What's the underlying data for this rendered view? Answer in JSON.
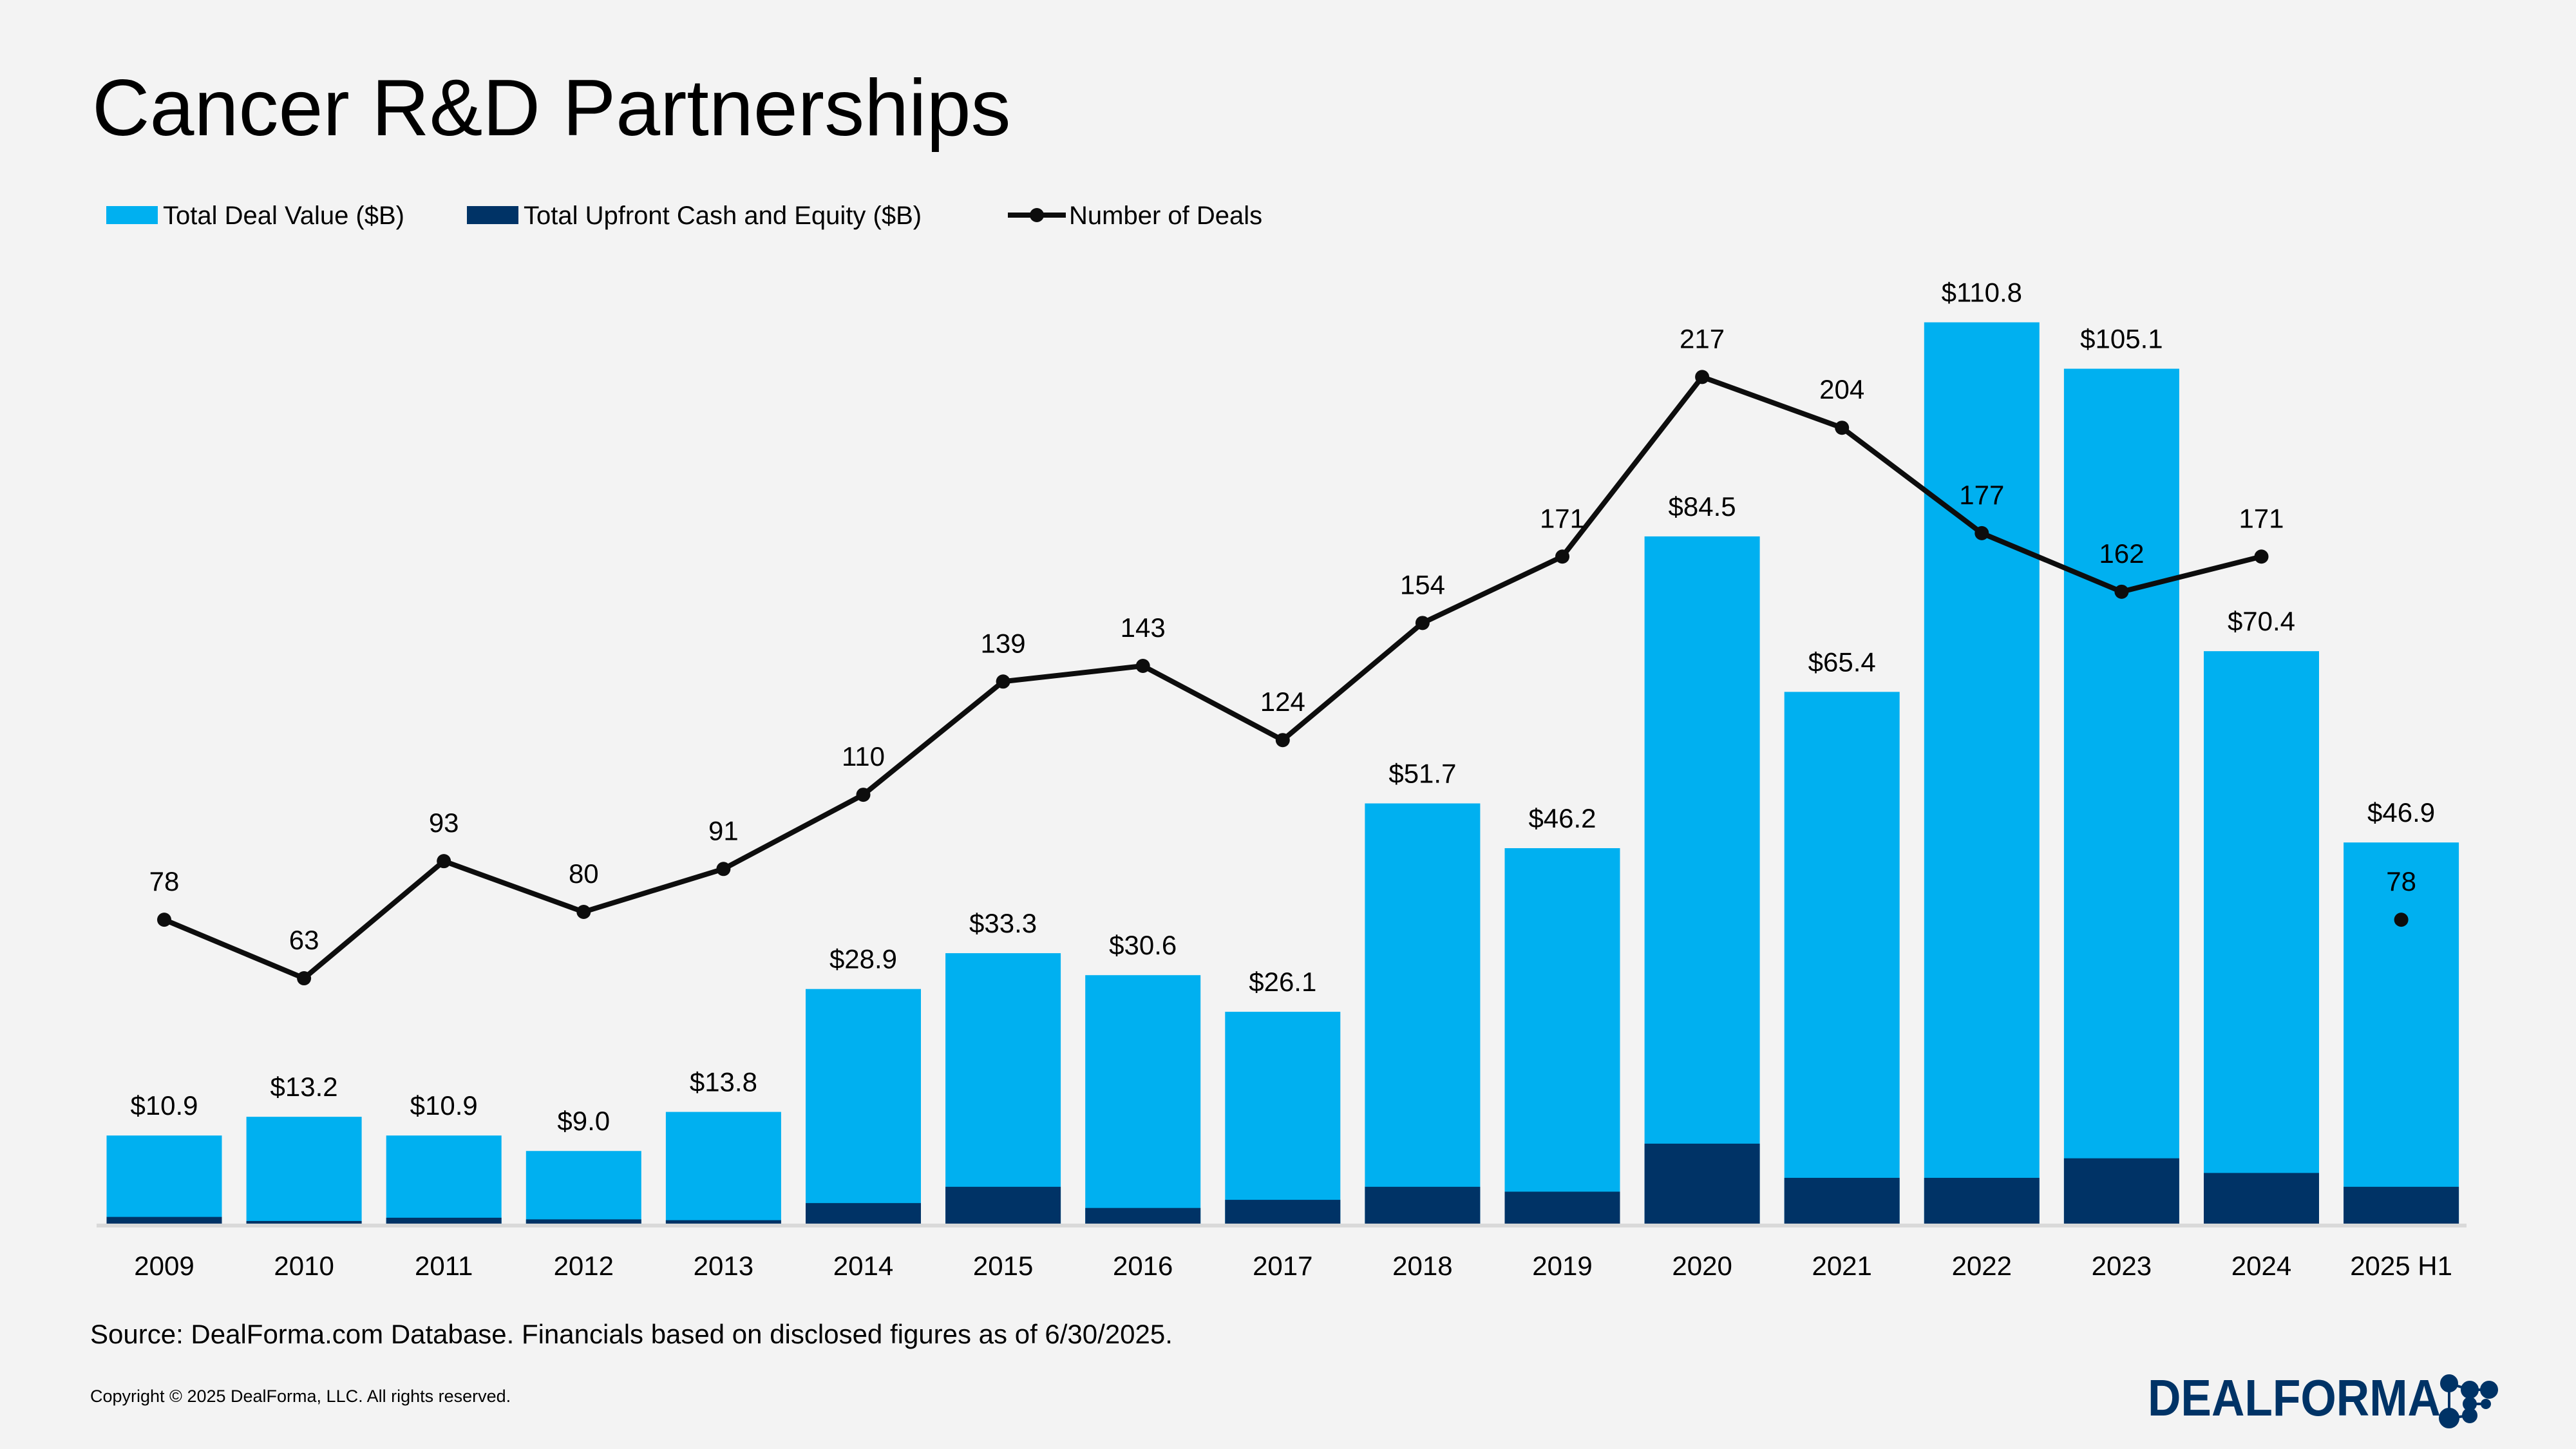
{
  "title": "Cancer R&D Partnerships",
  "source": "Source: DealForma.com Database. Financials based on disclosed figures as of 6/30/2025.",
  "copyright": "Copyright © 2025 DealForma, LLC. All rights reserved.",
  "logo": {
    "text": "DealForma",
    "color": "#003366"
  },
  "colors": {
    "total_deal_value": "#00b0f0",
    "upfront": "#003366",
    "deals_line": "#0d0d0d",
    "background": "#f3f3f3",
    "axis": "#d9d9d9"
  },
  "chart_data": {
    "type": "bar",
    "title": "Cancer R&D Partnerships",
    "categories": [
      "2009",
      "2010",
      "2011",
      "2012",
      "2013",
      "2014",
      "2015",
      "2016",
      "2017",
      "2018",
      "2019",
      "2020",
      "2021",
      "2022",
      "2023",
      "2024",
      "2025 H1"
    ],
    "legend_placement": "top-left",
    "grid": false,
    "series": [
      {
        "name": "Total Deal Value ($B)",
        "type": "bar",
        "values": [
          10.9,
          13.2,
          10.9,
          9.0,
          13.8,
          28.9,
          33.3,
          30.6,
          26.1,
          51.7,
          46.2,
          84.5,
          65.4,
          110.8,
          105.1,
          70.4,
          46.9
        ],
        "labels": [
          "$10.9",
          "$13.2",
          "$10.9",
          "$9.0",
          "$13.8",
          "$28.9",
          "$33.3",
          "$30.6",
          "$26.1",
          "$51.7",
          "$46.2",
          "$84.5",
          "$65.4",
          "$110.8",
          "$105.1",
          "$70.4",
          "$46.9"
        ]
      },
      {
        "name": "Total Upfront Cash and Equity ($B)",
        "type": "bar",
        "values": [
          0.9,
          0.4,
          0.8,
          0.6,
          0.5,
          2.6,
          4.6,
          2.0,
          3.0,
          4.6,
          4.0,
          9.9,
          5.7,
          5.7,
          8.1,
          6.3,
          4.6
        ]
      },
      {
        "name": "Number of Deals",
        "type": "line",
        "values": [
          78,
          63,
          93,
          80,
          91,
          110,
          139,
          143,
          124,
          154,
          171,
          217,
          204,
          177,
          162,
          171,
          78
        ],
        "line_break_before_last": true
      }
    ],
    "ylim_value": [
      0,
      110.8
    ],
    "ylim_deals": [
      0,
      217
    ]
  }
}
